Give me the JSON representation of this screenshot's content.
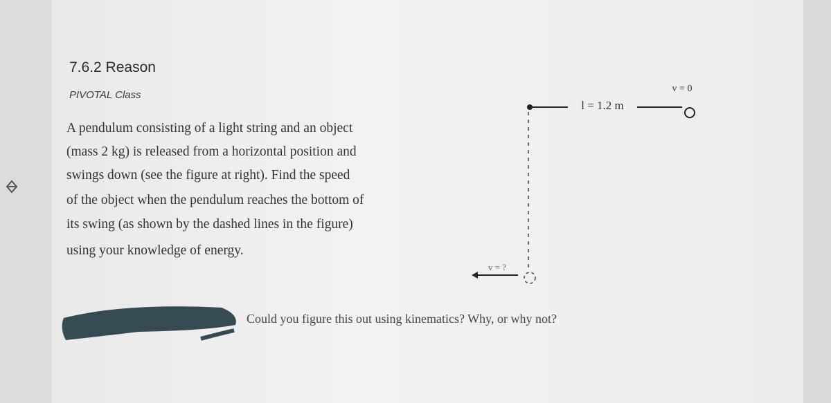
{
  "header": {
    "title": "7.6.2 Reason",
    "subtitle": "PIVOTAL Class"
  },
  "problem": {
    "lines": [
      "A pendulum consisting of a light string and an object",
      "(mass 2 kg) is released from a horizontal position and",
      "swings down (see the figure at right).  Find the speed",
      "of the object when the pendulum reaches the bottom of",
      "its swing (as shown by the dashed lines in the figure)",
      "using your knowledge of energy."
    ]
  },
  "figure": {
    "v_top": "v = 0",
    "length_label": "l = 1.2 m",
    "v_bottom": "v = ?"
  },
  "question": "Could you figure this out using kinematics?  Why, or why not?"
}
